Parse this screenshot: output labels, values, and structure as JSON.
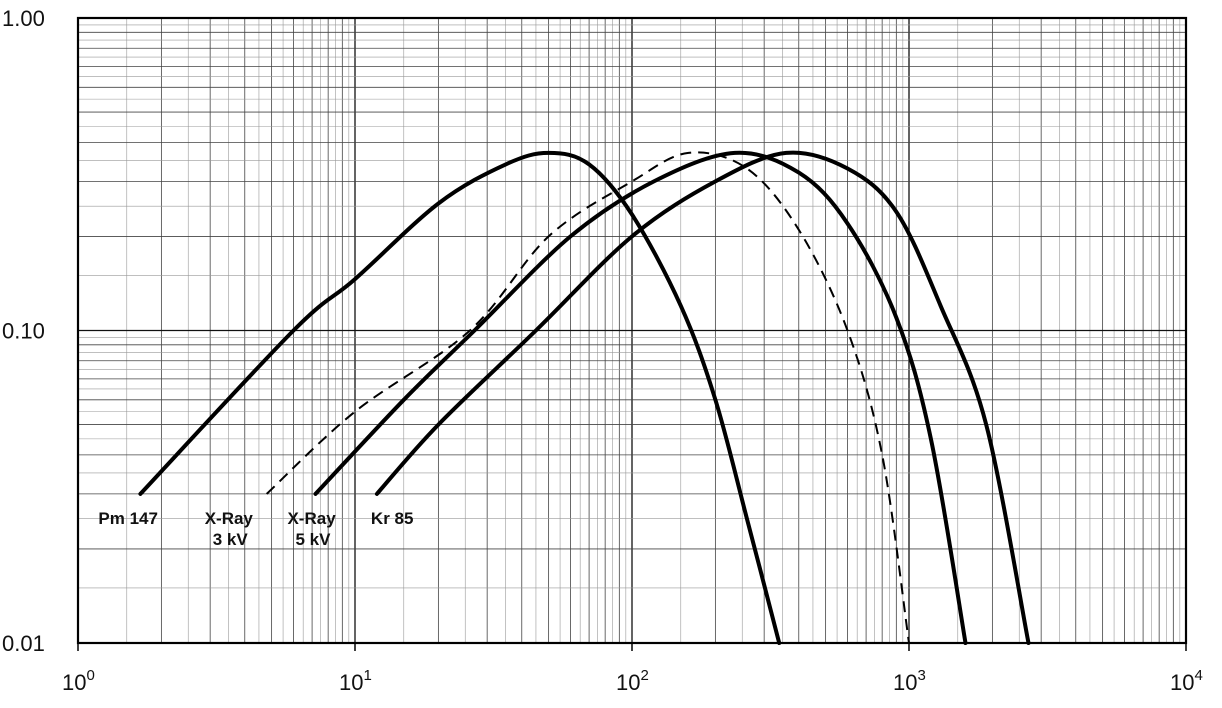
{
  "chart_data": {
    "type": "line",
    "title": "",
    "xlabel": "",
    "ylabel": "",
    "x_scale": "log",
    "y_scale": "log",
    "xlim": [
      1,
      10000
    ],
    "ylim": [
      0.01,
      1.0
    ],
    "grid": true,
    "x_ticks": [
      {
        "base": "10",
        "exp": "0",
        "value": 1
      },
      {
        "base": "10",
        "exp": "1",
        "value": 10
      },
      {
        "base": "10",
        "exp": "2",
        "value": 100
      },
      {
        "base": "10",
        "exp": "3",
        "value": 1000
      },
      {
        "base": "10",
        "exp": "4",
        "value": 10000
      }
    ],
    "y_ticks": [
      {
        "label": "1.00",
        "value": 1.0
      },
      {
        "label": "0.10",
        "value": 0.1
      },
      {
        "label": "0.01",
        "value": 0.01
      }
    ],
    "series": [
      {
        "name": "Pm 147",
        "label_lines": [
          "Pm 147"
        ],
        "style": "solid",
        "points": [
          [
            1.68,
            0.03
          ],
          [
            6,
            0.1
          ],
          [
            10,
            0.146
          ],
          [
            20,
            0.255
          ],
          [
            35,
            0.34
          ],
          [
            50,
            0.37
          ],
          [
            70,
            0.34
          ],
          [
            100,
            0.235
          ],
          [
            150,
            0.12
          ],
          [
            200,
            0.06
          ],
          [
            260,
            0.025
          ],
          [
            340,
            0.01
          ]
        ]
      },
      {
        "name": "X-Ray 3 kV",
        "label_lines": [
          "X-Ray",
          "3 kV"
        ],
        "style": "dashed",
        "points": [
          [
            4.8,
            0.03
          ],
          [
            10,
            0.055
          ],
          [
            26,
            0.1
          ],
          [
            50,
            0.2
          ],
          [
            100,
            0.3
          ],
          [
            160,
            0.37
          ],
          [
            260,
            0.33
          ],
          [
            400,
            0.21
          ],
          [
            600,
            0.1
          ],
          [
            800,
            0.04
          ],
          [
            1000,
            0.01
          ]
        ]
      },
      {
        "name": "X-Ray 5 kV",
        "label_lines": [
          "X-Ray",
          "5 kV"
        ],
        "style": "solid",
        "points": [
          [
            7.2,
            0.03
          ],
          [
            15,
            0.06
          ],
          [
            27,
            0.1
          ],
          [
            60,
            0.2
          ],
          [
            120,
            0.3
          ],
          [
            235,
            0.37
          ],
          [
            400,
            0.32
          ],
          [
            600,
            0.22
          ],
          [
            900,
            0.11
          ],
          [
            1200,
            0.045
          ],
          [
            1600,
            0.01
          ]
        ]
      },
      {
        "name": "Kr 85",
        "label_lines": [
          "Kr 85"
        ],
        "style": "solid",
        "points": [
          [
            12,
            0.03
          ],
          [
            20,
            0.05
          ],
          [
            45,
            0.1
          ],
          [
            100,
            0.2
          ],
          [
            200,
            0.3
          ],
          [
            360,
            0.37
          ],
          [
            600,
            0.33
          ],
          [
            900,
            0.24
          ],
          [
            1300,
            0.12
          ],
          [
            1900,
            0.05
          ],
          [
            2700,
            0.01
          ]
        ]
      }
    ]
  }
}
